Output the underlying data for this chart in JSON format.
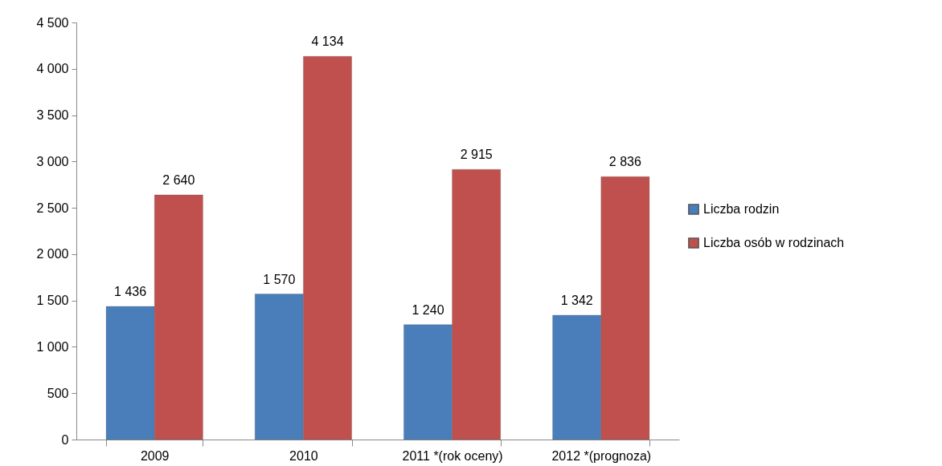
{
  "chart_data": {
    "type": "bar",
    "categories": [
      "2009",
      "2010",
      "2011 *(rok oceny)",
      "2012 *(prognoza)"
    ],
    "series": [
      {
        "name": "Liczba rodzin",
        "color": "#4a7ebb",
        "values": [
          1436,
          1570,
          1240,
          1342
        ],
        "value_labels": [
          "1 436",
          "1 570",
          "1 240",
          "1 342"
        ]
      },
      {
        "name": "Liczba osób w rodzinach",
        "color": "#c0504d",
        "values": [
          2640,
          4134,
          2915,
          2836
        ],
        "value_labels": [
          "2 640",
          "4 134",
          "2 915",
          "2 836"
        ]
      }
    ],
    "ylim": [
      0,
      4500
    ],
    "yticks": [
      {
        "value": 0,
        "label": "0"
      },
      {
        "value": 500,
        "label": "500"
      },
      {
        "value": 1000,
        "label": "1 000"
      },
      {
        "value": 1500,
        "label": "1 500"
      },
      {
        "value": 2000,
        "label": "2 000"
      },
      {
        "value": 2500,
        "label": "2 500"
      },
      {
        "value": 3000,
        "label": "3 000"
      },
      {
        "value": 3500,
        "label": "3 500"
      },
      {
        "value": 4000,
        "label": "4 000"
      },
      {
        "value": 4500,
        "label": "4 500"
      }
    ],
    "grid": false,
    "legend": "right"
  }
}
